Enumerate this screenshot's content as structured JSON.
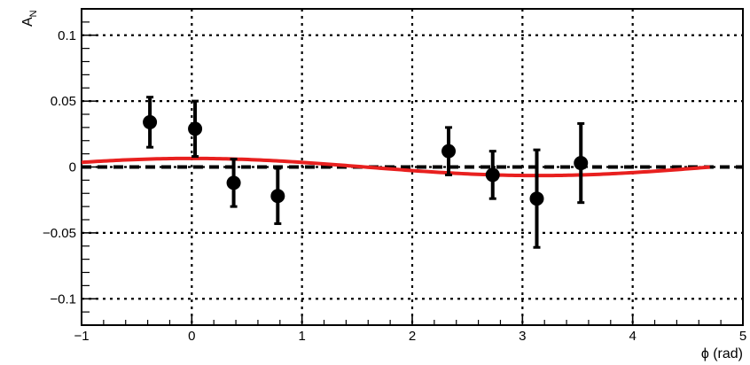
{
  "chart_data": {
    "type": "scatter",
    "title": "",
    "xlabel": "ϕ (rad)",
    "ylabel_main": "A",
    "ylabel_sub": "N",
    "xlim": [
      -1,
      5
    ],
    "ylim": [
      -0.12,
      0.12
    ],
    "x_ticks": [
      -1,
      0,
      1,
      2,
      3,
      4,
      5
    ],
    "x_tick_labels": [
      "−1",
      "0",
      "1",
      "2",
      "3",
      "4",
      "5"
    ],
    "y_ticks": [
      -0.1,
      -0.05,
      0,
      0.05,
      0.1
    ],
    "y_tick_labels": [
      "−0.1",
      "−0.05",
      "0",
      "0.05",
      "0.1"
    ],
    "grid": true,
    "points": [
      {
        "x": -0.38,
        "y": 0.034,
        "err": 0.019
      },
      {
        "x": 0.03,
        "y": 0.029,
        "err": 0.021
      },
      {
        "x": 0.38,
        "y": -0.012,
        "err": 0.018
      },
      {
        "x": 0.78,
        "y": -0.022,
        "err": 0.021
      },
      {
        "x": 2.33,
        "y": 0.012,
        "err": 0.018
      },
      {
        "x": 2.73,
        "y": -0.006,
        "err": 0.018
      },
      {
        "x": 3.13,
        "y": -0.024,
        "err": 0.037
      },
      {
        "x": 3.53,
        "y": 0.003,
        "err": 0.03
      }
    ],
    "fit_curve": {
      "amplitude": 0.0065,
      "phase": 0.0,
      "x_start": -1,
      "x_end": 4.7,
      "color": "#e8201f"
    },
    "reference_line": {
      "y": 0,
      "style": "dashed",
      "color": "#000000"
    },
    "marker_color": "#000000"
  }
}
